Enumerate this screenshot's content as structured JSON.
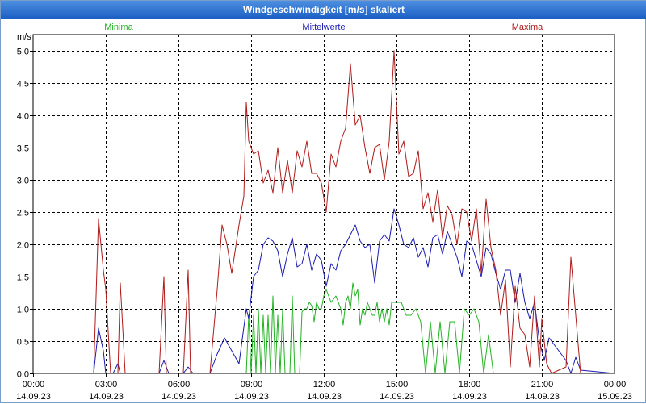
{
  "window": {
    "title": "Windgeschwindigkeit [m/s] skaliert"
  },
  "chart_data": {
    "type": "line",
    "title": "Windgeschwindigkeit [m/s] skaliert",
    "ylabel": "m/s",
    "ylim": [
      0,
      5.25
    ],
    "xlim": [
      0,
      24
    ],
    "grid": true,
    "colors": {
      "Minima": "#22b322",
      "Mittelwerte": "#1a1ab0",
      "Maxima": "#b01a1a",
      "grid": "#000000",
      "axis": "#000000"
    },
    "y_ticks": [
      {
        "value": 0,
        "label": "0,0"
      },
      {
        "value": 0.5,
        "label": "0,5"
      },
      {
        "value": 1.0,
        "label": "1,0"
      },
      {
        "value": 1.5,
        "label": "1,5"
      },
      {
        "value": 2.0,
        "label": "2,0"
      },
      {
        "value": 2.5,
        "label": "2,5"
      },
      {
        "value": 3.0,
        "label": "3,0"
      },
      {
        "value": 3.5,
        "label": "3,5"
      },
      {
        "value": 4.0,
        "label": "4,0"
      },
      {
        "value": 4.5,
        "label": "4,5"
      },
      {
        "value": 5.0,
        "label": "5,0"
      }
    ],
    "x_ticks": [
      {
        "value": 0,
        "time": "00:00",
        "date": "14.09.23"
      },
      {
        "value": 3,
        "time": "03:00",
        "date": "14.09.23"
      },
      {
        "value": 6,
        "time": "06:00",
        "date": "14.09.23"
      },
      {
        "value": 9,
        "time": "09:00",
        "date": "14.09.23"
      },
      {
        "value": 12,
        "time": "12:00",
        "date": "14.09.23"
      },
      {
        "value": 15,
        "time": "15:00",
        "date": "14.09.23"
      },
      {
        "value": 18,
        "time": "18:00",
        "date": "14.09.23"
      },
      {
        "value": 21,
        "time": "21:00",
        "date": "14.09.23"
      },
      {
        "value": 24,
        "time": "00:00",
        "date": "15.09.23"
      }
    ],
    "series": [
      {
        "name": "Minima",
        "legend_position": "top-left",
        "x": [
          0,
          8.8,
          8.9,
          9.0,
          9.1,
          9.2,
          9.3,
          9.4,
          9.5,
          9.6,
          9.7,
          9.8,
          9.9,
          10.0,
          10.1,
          10.2,
          10.3,
          10.4,
          10.5,
          10.6,
          10.7,
          10.8,
          10.9,
          11.0,
          11.1,
          11.2,
          11.3,
          11.4,
          11.5,
          11.6,
          11.7,
          11.8,
          11.9,
          12.0,
          12.1,
          12.2,
          12.3,
          12.4,
          12.5,
          12.6,
          12.7,
          12.8,
          12.9,
          13.0,
          13.1,
          13.2,
          13.3,
          13.4,
          13.5,
          13.6,
          13.7,
          13.8,
          13.9,
          14.0,
          14.1,
          14.2,
          14.3,
          14.4,
          14.5,
          14.6,
          14.7,
          14.8,
          14.9,
          15.0,
          15.2,
          15.4,
          15.6,
          15.8,
          16.0,
          16.2,
          16.4,
          16.6,
          16.8,
          17.0,
          17.2,
          17.4,
          17.6,
          17.8,
          18.0,
          18.2,
          18.4,
          18.6,
          18.8,
          19.0,
          19.2,
          19.4,
          19.6,
          24
        ],
        "values": [
          0,
          0,
          0.9,
          0,
          0.9,
          0,
          1.0,
          0,
          0.9,
          0,
          0.9,
          0,
          1.2,
          0,
          0.9,
          0,
          1.0,
          0,
          0,
          0,
          1.2,
          0,
          0,
          0,
          0.95,
          1.0,
          1.0,
          1.1,
          1.05,
          0.8,
          1.1,
          1.0,
          1.0,
          1.2,
          1.3,
          1.2,
          1.1,
          1.15,
          1.2,
          1.1,
          1.0,
          0.75,
          1.1,
          1.2,
          1.0,
          1.4,
          1.2,
          1.3,
          0.75,
          1.0,
          0.9,
          1.1,
          1.0,
          0.9,
          0.9,
          1.1,
          0.8,
          1.0,
          0.8,
          1.0,
          0.75,
          1.1,
          1.1,
          1.1,
          1.1,
          0.9,
          0.9,
          1.0,
          0.8,
          0,
          0.8,
          0,
          0.8,
          0,
          0.8,
          0.8,
          0,
          1.0,
          0.9,
          1.0,
          0.8,
          0,
          0.6,
          0,
          0,
          0,
          0,
          0
        ]
      },
      {
        "name": "Mittelwerte",
        "legend_position": "top-center",
        "x": [
          0,
          2.5,
          2.7,
          2.9,
          3.0,
          3.3,
          3.5,
          3.6,
          3.8,
          5.2,
          5.4,
          5.6,
          6.2,
          6.4,
          6.6,
          7.3,
          7.6,
          7.9,
          8.2,
          8.5,
          8.8,
          8.9,
          9.1,
          9.3,
          9.5,
          9.7,
          9.9,
          10.1,
          10.3,
          10.5,
          10.7,
          10.9,
          11.1,
          11.3,
          11.5,
          11.7,
          11.9,
          12.1,
          12.3,
          12.5,
          12.7,
          12.9,
          13.1,
          13.3,
          13.5,
          13.7,
          13.9,
          14.1,
          14.3,
          14.5,
          14.7,
          14.9,
          15.1,
          15.3,
          15.5,
          15.7,
          15.9,
          16.1,
          16.3,
          16.5,
          16.7,
          16.9,
          17.1,
          17.3,
          17.5,
          17.7,
          17.9,
          18.1,
          18.3,
          18.5,
          18.7,
          18.9,
          19.1,
          19.3,
          19.5,
          19.7,
          19.9,
          20.1,
          20.3,
          20.5,
          20.7,
          20.9,
          21.1,
          21.3,
          22.0,
          22.2,
          22.4,
          22.6,
          24
        ],
        "values": [
          0,
          0,
          0.7,
          0.35,
          0,
          0,
          0.15,
          0,
          0,
          0,
          0.2,
          0,
          0,
          0.1,
          0,
          0,
          0.3,
          0.55,
          0.35,
          0.15,
          1.0,
          0.85,
          1.5,
          1.6,
          2.0,
          2.1,
          2.05,
          1.9,
          1.5,
          1.85,
          2.1,
          1.65,
          1.7,
          2.0,
          1.6,
          1.85,
          1.75,
          1.35,
          1.7,
          1.6,
          1.9,
          2.0,
          2.15,
          2.3,
          2.05,
          1.95,
          2.0,
          1.4,
          2.05,
          2.15,
          2.05,
          2.55,
          2.3,
          2.0,
          1.95,
          2.1,
          1.8,
          1.95,
          1.65,
          2.1,
          2.15,
          1.85,
          2.2,
          2.0,
          1.8,
          1.5,
          2.05,
          2.0,
          1.75,
          1.5,
          1.95,
          1.85,
          1.55,
          1.3,
          1.6,
          1.6,
          1.1,
          1.55,
          1.1,
          0.85,
          1.1,
          0.5,
          0.2,
          0.55,
          0.2,
          0,
          0.25,
          0.05,
          0
        ]
      },
      {
        "name": "Maxima",
        "legend_position": "top-right",
        "x": [
          0,
          2.5,
          2.7,
          2.9,
          3.0,
          3.2,
          3.5,
          3.6,
          3.8,
          5.2,
          5.4,
          5.5,
          6.2,
          6.4,
          6.5,
          7.3,
          7.6,
          7.8,
          8.0,
          8.2,
          8.5,
          8.7,
          8.8,
          8.9,
          9.1,
          9.3,
          9.5,
          9.7,
          9.9,
          10.1,
          10.3,
          10.5,
          10.7,
          10.9,
          11.1,
          11.3,
          11.5,
          11.7,
          11.9,
          12.1,
          12.3,
          12.5,
          12.7,
          12.9,
          13.1,
          13.3,
          13.5,
          13.7,
          13.9,
          14.1,
          14.3,
          14.5,
          14.7,
          14.9,
          15.1,
          15.3,
          15.5,
          15.7,
          15.9,
          16.1,
          16.3,
          16.5,
          16.7,
          16.9,
          17.1,
          17.3,
          17.5,
          17.7,
          17.9,
          18.1,
          18.3,
          18.5,
          18.7,
          18.9,
          19.1,
          19.3,
          19.5,
          19.7,
          19.9,
          20.1,
          20.3,
          20.5,
          20.7,
          20.9,
          21.0,
          21.2,
          21.4,
          22.0,
          22.2,
          22.4,
          22.6,
          24
        ],
        "values": [
          0,
          0,
          2.4,
          1.6,
          1.3,
          0,
          0,
          1.4,
          0,
          0,
          1.5,
          0,
          0,
          1.6,
          0,
          0,
          1.3,
          2.3,
          2.0,
          1.55,
          2.3,
          2.75,
          4.2,
          3.6,
          3.4,
          3.45,
          2.95,
          3.15,
          2.8,
          3.5,
          2.8,
          3.3,
          2.8,
          3.45,
          3.2,
          3.6,
          3.1,
          3.1,
          2.95,
          2.5,
          3.4,
          3.2,
          3.6,
          3.8,
          4.8,
          3.85,
          4.0,
          3.5,
          3.1,
          3.5,
          3.55,
          3.0,
          3.6,
          5.0,
          3.4,
          3.6,
          3.05,
          3.1,
          3.45,
          2.55,
          2.8,
          2.35,
          2.85,
          2.1,
          2.6,
          2.45,
          2.0,
          2.55,
          2.5,
          2.05,
          2.55,
          1.55,
          2.7,
          1.95,
          1.6,
          0.9,
          1.45,
          0.1,
          1.35,
          0.7,
          0.6,
          0.1,
          1.2,
          0.1,
          0.85,
          0.15,
          0,
          0.1,
          1.8,
          0.9,
          0,
          0
        ]
      }
    ]
  }
}
